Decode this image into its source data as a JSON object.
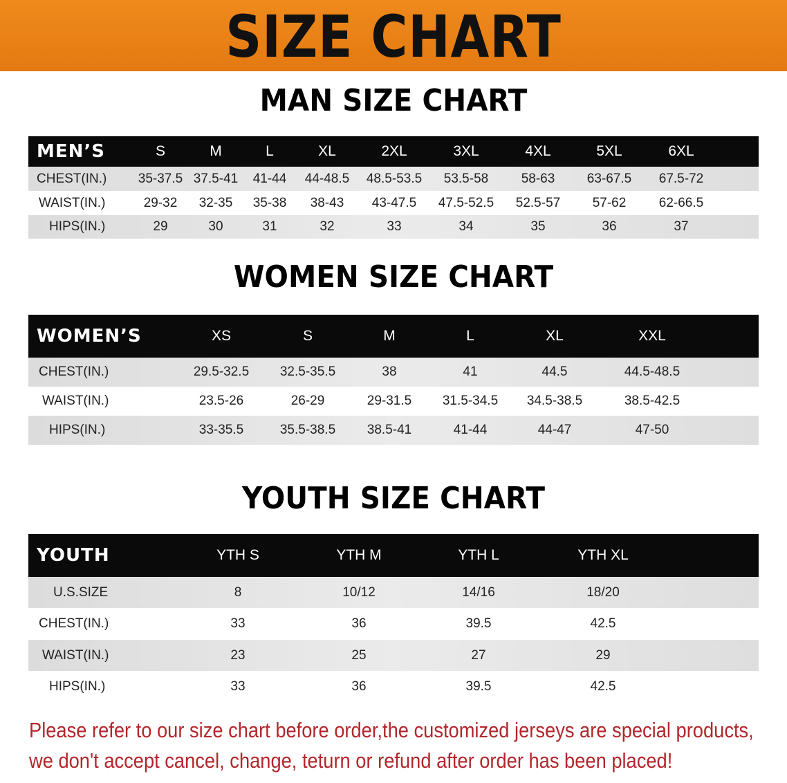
{
  "banner_title": "SIZE CHART",
  "men": {
    "title": "MAN SIZE CHART",
    "header": [
      "MEN’S",
      "S",
      "M",
      "L",
      "XL",
      "2XL",
      "3XL",
      "4XL",
      "5XL",
      "6XL"
    ],
    "rows": [
      [
        "CHEST(IN.)",
        "35-37.5",
        "37.5-41",
        "41-44",
        "44-48.5",
        "48.5-53.5",
        "53.5-58",
        "58-63",
        "63-67.5",
        "67.5-72"
      ],
      [
        "WAIST(IN.)",
        "29-32",
        "32-35",
        "35-38",
        "38-43",
        "43-47.5",
        "47.5-52.5",
        "52.5-57",
        "57-62",
        "62-66.5"
      ],
      [
        "HIPS(IN.)",
        "29",
        "30",
        "31",
        "32",
        "33",
        "34",
        "35",
        "36",
        "37"
      ]
    ]
  },
  "women": {
    "title": "WOMEN SIZE CHART",
    "header": [
      "WOMEN’S",
      "XS",
      "S",
      "M",
      "L",
      "XL",
      "XXL"
    ],
    "rows": [
      [
        "CHEST(IN.)",
        "29.5-32.5",
        "32.5-35.5",
        "38",
        "41",
        "44.5",
        "44.5-48.5"
      ],
      [
        "WAIST(IN.)",
        "23.5-26",
        "26-29",
        "29-31.5",
        "31.5-34.5",
        "34.5-38.5",
        "38.5-42.5"
      ],
      [
        "HIPS(IN.)",
        "33-35.5",
        "35.5-38.5",
        "38.5-41",
        "41-44",
        "44-47",
        "47-50"
      ]
    ]
  },
  "youth": {
    "title": "YOUTH SIZE CHART",
    "header": [
      "YOUTH",
      "YTH S",
      "YTH M",
      "YTH L",
      "YTH XL"
    ],
    "rows": [
      [
        "U.S.SIZE",
        "8",
        "10/12",
        "14/16",
        "18/20"
      ],
      [
        "CHEST(IN.)",
        "33",
        "36",
        "39.5",
        "42.5"
      ],
      [
        "WAIST(IN.)",
        "23",
        "25",
        "27",
        "29"
      ],
      [
        "HIPS(IN.)",
        "33",
        "36",
        "39.5",
        "42.5"
      ]
    ]
  },
  "notice": {
    "line1": "Please refer to our size chart before order,the customized jerseys are special products,",
    "line2": "we don't accept cancel, change, teturn or refund after order has been placed!"
  },
  "colors": {
    "banner": "#e8801a",
    "header_bg": "#0a0a0a",
    "notice": "#b3262b"
  }
}
